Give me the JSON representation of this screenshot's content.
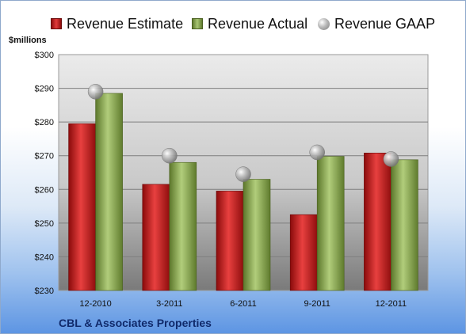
{
  "chart_data": {
    "type": "bar",
    "title": "",
    "ylabel": "$millions",
    "xlabel": "",
    "ylim": [
      230,
      300
    ],
    "yticks": [
      230,
      240,
      250,
      260,
      270,
      280,
      290,
      300
    ],
    "ytick_labels": [
      "$230",
      "$240",
      "$250",
      "$260",
      "$270",
      "$280",
      "$290",
      "$300"
    ],
    "grid": true,
    "legend_position": "top",
    "categories": [
      "12-2010",
      "3-2011",
      "6-2011",
      "9-2011",
      "12-2011"
    ],
    "series": [
      {
        "name": "Revenue Estimate",
        "kind": "bar",
        "color": "#c8181b",
        "values": [
          279.5,
          261.5,
          259.5,
          252.5,
          270.8
        ]
      },
      {
        "name": "Revenue Actual",
        "kind": "bar",
        "color": "#8aab4a",
        "values": [
          288.5,
          268,
          263,
          269.8,
          268.8
        ]
      },
      {
        "name": "Revenue GAAP",
        "kind": "point",
        "color": "#a8a8a8",
        "values": [
          289,
          270,
          264.5,
          271,
          269
        ]
      }
    ],
    "company": "CBL & Associates Properties"
  }
}
